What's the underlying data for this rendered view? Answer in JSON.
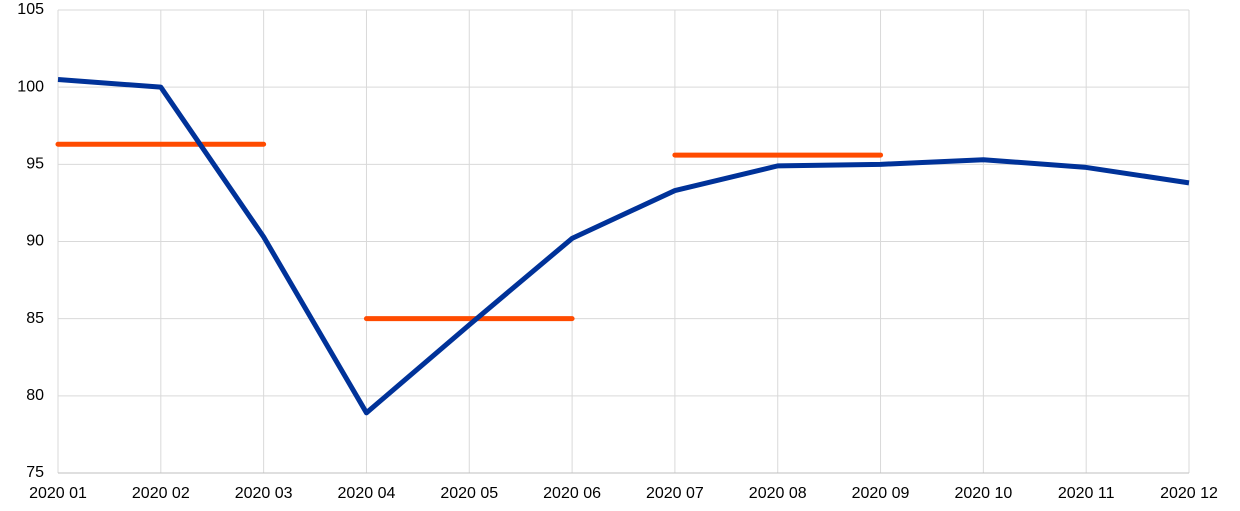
{
  "chart_data": {
    "type": "line",
    "categories": [
      "2020 01",
      "2020 02",
      "2020 03",
      "2020 04",
      "2020 05",
      "2020 06",
      "2020 07",
      "2020 08",
      "2020 09",
      "2020 10",
      "2020 11",
      "2020 12"
    ],
    "series": [
      {
        "color": "#003299",
        "values": [
          100.5,
          100.0,
          90.3,
          78.9,
          84.6,
          90.2,
          93.3,
          94.9,
          95.0,
          95.3,
          94.8,
          93.8
        ]
      }
    ],
    "segments": [
      {
        "start": "2020 01",
        "end": "2020 03",
        "value": 96.3,
        "color": "#ff4b00"
      },
      {
        "start": "2020 04",
        "end": "2020 06",
        "value": 85.0,
        "color": "#ff4b00"
      },
      {
        "start": "2020 07",
        "end": "2020 09",
        "value": 95.6,
        "color": "#ff4b00"
      }
    ],
    "ylim": [
      75,
      105
    ],
    "yticks": [
      75,
      80,
      85,
      90,
      95,
      100,
      105
    ],
    "grid": true
  }
}
